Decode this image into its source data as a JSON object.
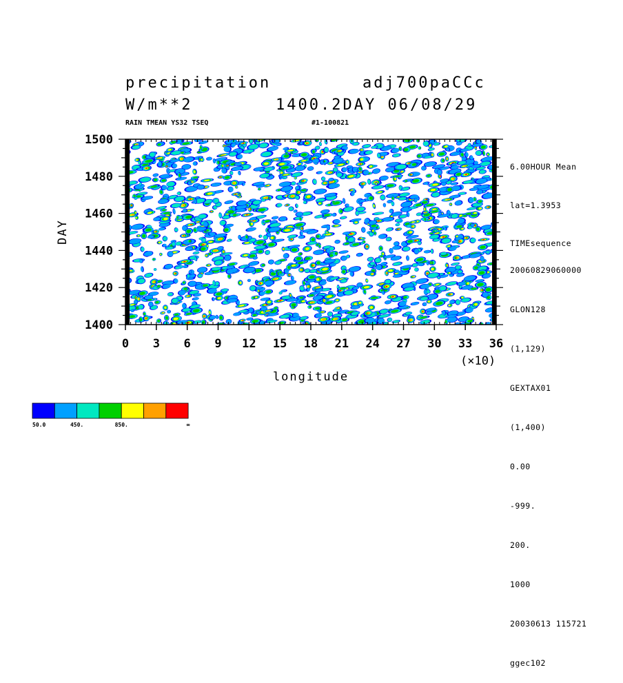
{
  "header": {
    "variable": "precipitation",
    "experiment": "adj700paCCc",
    "units": "W/m**2",
    "time": "1400.2DAY 06/08/29",
    "subtitle_left": "RAIN TMEAN YS32 TSEQ",
    "subtitle_right": "#1-100821"
  },
  "side_info_top": [
    "6.00HOUR Mean",
    "lat=1.3953",
    "TIMEsequence"
  ],
  "side_info_bottom": [
    "20060829060000",
    "GLON128",
    "(1,129)",
    "GEXTAX01",
    "(1,400)",
    "0.00",
    "-999.",
    "200.",
    "1000",
    "20030613 115721",
    "ggec102"
  ],
  "chart_data": {
    "type": "heatmap",
    "title": "precipitation",
    "xlabel": "longitude",
    "ylabel": "DAY",
    "x_multiplier_label": "(×10)",
    "xlim": [
      0,
      36
    ],
    "ylim": [
      1400,
      1500
    ],
    "x_ticks": [
      "0",
      "3",
      "6",
      "9",
      "12",
      "15",
      "18",
      "21",
      "24",
      "27",
      "30",
      "33",
      "36"
    ],
    "y_ticks": [
      "1400",
      "1420",
      "1440",
      "1460",
      "1480",
      "1500"
    ],
    "levels": [
      50,
      250,
      450,
      650,
      850,
      1050,
      1250
    ],
    "level_colors": [
      "#0000ff",
      "#00a0ff",
      "#00e8c0",
      "#00d000",
      "#ffff00",
      "#ffa000",
      "#ff0000"
    ],
    "colorbar_labels": [
      "50.0",
      "450.",
      "850.",
      "∞"
    ]
  }
}
